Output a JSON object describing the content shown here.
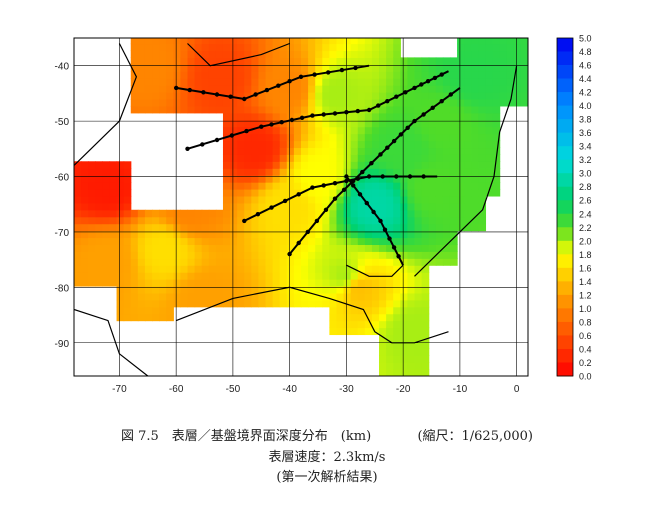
{
  "chart_data": {
    "type": "heatmap",
    "x_ticks": [
      -70,
      -60,
      -50,
      -40,
      -30,
      -20,
      -10,
      0
    ],
    "y_ticks": [
      -40,
      -50,
      -60,
      -70,
      -80,
      -90
    ],
    "xlim": [
      -78,
      2
    ],
    "ylim": [
      -96,
      -35
    ],
    "grid": true,
    "colorbar": {
      "placement": "right",
      "min": 0.0,
      "max": 5.0,
      "step": 0.2,
      "tick_labels": [
        "5.0",
        "4.8",
        "4.6",
        "4.4",
        "4.2",
        "4.0",
        "3.8",
        "3.6",
        "3.4",
        "3.2",
        "3.0",
        "2.8",
        "2.6",
        "2.4",
        "2.2",
        "2.0",
        "1.8",
        "1.6",
        "1.4",
        "1.2",
        "1.0",
        "0.8",
        "0.6",
        "0.4",
        "0.2",
        "0.0"
      ]
    },
    "field_points": [
      {
        "x": -46,
        "y": -55,
        "value": 0.3
      },
      {
        "x": -72,
        "y": -62,
        "value": 0.2
      },
      {
        "x": -52,
        "y": -42,
        "value": 0.5
      },
      {
        "x": -65,
        "y": -40,
        "value": 1.0
      },
      {
        "x": -40,
        "y": -44,
        "value": 1.0
      },
      {
        "x": -62,
        "y": -73,
        "value": 1.6
      },
      {
        "x": -72,
        "y": -75,
        "value": 1.2
      },
      {
        "x": -58,
        "y": -66,
        "value": 1.0
      },
      {
        "x": -55,
        "y": -82,
        "value": 1.2
      },
      {
        "x": -25,
        "y": -65,
        "value": 2.9
      },
      {
        "x": -20,
        "y": -55,
        "value": 2.3
      },
      {
        "x": -32,
        "y": -45,
        "value": 2.0
      },
      {
        "x": -13,
        "y": -50,
        "value": 2.2
      },
      {
        "x": -15,
        "y": -62,
        "value": 2.2
      },
      {
        "x": -30,
        "y": -78,
        "value": 2.0
      },
      {
        "x": -18,
        "y": -88,
        "value": 2.0
      },
      {
        "x": -35,
        "y": -60,
        "value": 1.8
      },
      {
        "x": -40,
        "y": -65,
        "value": 1.6
      },
      {
        "x": -28,
        "y": -80,
        "value": 1.4
      },
      {
        "x": -8,
        "y": -42,
        "value": 2.4
      }
    ]
  },
  "caption": {
    "line1_main": "図 7.5　表層／基盤境界面深度分布　(km)",
    "line1_scale": "(縮尺：1/625,000)",
    "line2": "表層速度：2.3km/s",
    "line3": "(第一次解析結果)"
  }
}
